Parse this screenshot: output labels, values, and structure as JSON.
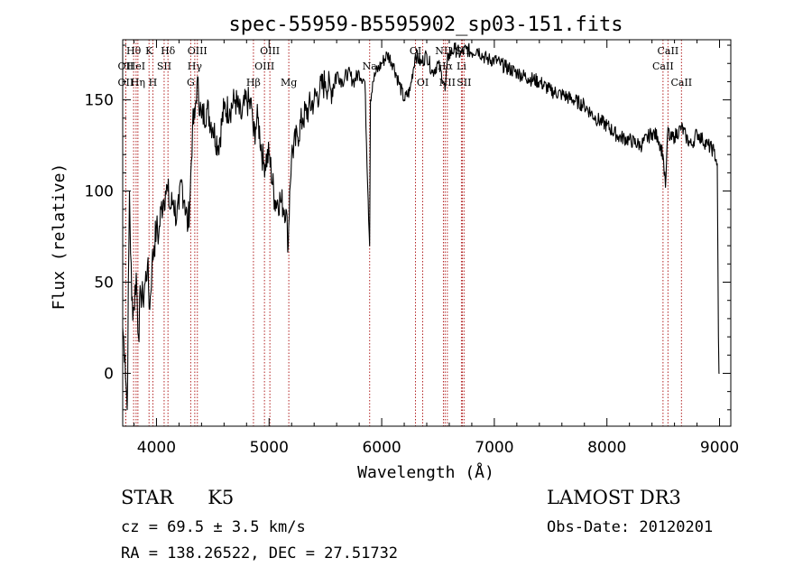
{
  "chart_data": {
    "type": "line",
    "title": "spec-55959-B5595902_sp03-151.fits",
    "xlabel": "Wavelength (Å)",
    "ylabel": "Flux (relative)",
    "xlim": [
      3700,
      9100
    ],
    "ylim": [
      -29,
      183
    ],
    "xticks": [
      4000,
      5000,
      6000,
      7000,
      8000,
      9000
    ],
    "yticks": [
      0,
      50,
      100,
      150
    ],
    "grid": false,
    "series": [
      {
        "name": "spectrum",
        "x": [
          3700,
          3720,
          3740,
          3760,
          3780,
          3800,
          3820,
          3840,
          3860,
          3880,
          3900,
          3920,
          3940,
          3960,
          3980,
          4000,
          4020,
          4040,
          4060,
          4080,
          4100,
          4120,
          4150,
          4180,
          4200,
          4220,
          4250,
          4280,
          4300,
          4320,
          4340,
          4360,
          4400,
          4450,
          4500,
          4550,
          4600,
          4650,
          4700,
          4750,
          4800,
          4850,
          4862,
          4880,
          4900,
          4950,
          5000,
          5050,
          5100,
          5150,
          5170,
          5183,
          5200,
          5250,
          5300,
          5350,
          5400,
          5450,
          5500,
          5550,
          5600,
          5650,
          5700,
          5750,
          5800,
          5850,
          5880,
          5893,
          5900,
          5920,
          5950,
          6000,
          6050,
          6100,
          6150,
          6200,
          6250,
          6300,
          6350,
          6400,
          6450,
          6500,
          6550,
          6563,
          6580,
          6600,
          6650,
          6700,
          6750,
          6800,
          6850,
          6900,
          6950,
          7000,
          7050,
          7100,
          7200,
          7300,
          7400,
          7500,
          7600,
          7700,
          7800,
          7900,
          8000,
          8100,
          8200,
          8300,
          8400,
          8450,
          8498,
          8520,
          8542,
          8560,
          8600,
          8662,
          8700,
          8750,
          8800,
          8850,
          8900,
          8950,
          8980,
          8990,
          8995,
          9000
        ],
        "values": [
          25,
          10,
          -20,
          100,
          40,
          35,
          55,
          20,
          45,
          40,
          50,
          60,
          35,
          60,
          70,
          80,
          75,
          90,
          95,
          100,
          100,
          90,
          95,
          85,
          90,
          105,
          95,
          80,
          100,
          135,
          140,
          160,
          140,
          145,
          135,
          125,
          145,
          145,
          150,
          140,
          150,
          145,
          130,
          135,
          140,
          115,
          120,
          95,
          95,
          90,
          70,
          100,
          120,
          130,
          140,
          145,
          150,
          155,
          160,
          155,
          165,
          160,
          165,
          160,
          165,
          160,
          95,
          70,
          150,
          160,
          165,
          170,
          175,
          170,
          160,
          150,
          155,
          175,
          170,
          175,
          165,
          170,
          160,
          155,
          170,
          175,
          178,
          175,
          178,
          176,
          178,
          174,
          172,
          172,
          170,
          168,
          165,
          162,
          160,
          155,
          153,
          150,
          147,
          140,
          136,
          130,
          128,
          125,
          132,
          130,
          120,
          102,
          135,
          128,
          130,
          135,
          130,
          125,
          132,
          128,
          125,
          122,
          115,
          20,
          0,
          0
        ]
      }
    ],
    "spectral_lines": [
      {
        "label": "Hθ",
        "x": 3797,
        "row": 1
      },
      {
        "label": "OII",
        "x": 3727,
        "row": 2
      },
      {
        "label": "OII",
        "x": 3727,
        "row": 3
      },
      {
        "label": "HeI",
        "x": 3819,
        "row": 2
      },
      {
        "label": "Hη",
        "x": 3835,
        "row": 3
      },
      {
        "label": "K",
        "x": 3934,
        "row": 1
      },
      {
        "label": "H",
        "x": 3968,
        "row": 3
      },
      {
        "label": "SII",
        "x": 4068,
        "row": 2
      },
      {
        "label": "Hδ",
        "x": 4102,
        "row": 1
      },
      {
        "label": "Hγ",
        "x": 4340,
        "row": 2
      },
      {
        "label": "G",
        "x": 4304,
        "row": 3
      },
      {
        "label": "OIII",
        "x": 4363,
        "row": 1
      },
      {
        "label": "Hβ",
        "x": 4861,
        "row": 3
      },
      {
        "label": "OIII",
        "x": 4959,
        "row": 2
      },
      {
        "label": "OIII",
        "x": 5007,
        "row": 1
      },
      {
        "label": "Mg",
        "x": 5175,
        "row": 3
      },
      {
        "label": "Na",
        "x": 5893,
        "row": 2
      },
      {
        "label": "OI",
        "x": 6300,
        "row": 1
      },
      {
        "label": "OI",
        "x": 6364,
        "row": 3
      },
      {
        "label": "NII",
        "x": 6548,
        "row": 1
      },
      {
        "label": "Hα",
        "x": 6563,
        "row": 2
      },
      {
        "label": "NII",
        "x": 6583,
        "row": 3
      },
      {
        "label": "SII",
        "x": 6716,
        "row": 1
      },
      {
        "label": "Li",
        "x": 6708,
        "row": 2
      },
      {
        "label": "SII",
        "x": 6731,
        "row": 3
      },
      {
        "label": "CaII",
        "x": 8542,
        "row": 1
      },
      {
        "label": "CaII",
        "x": 8498,
        "row": 2
      },
      {
        "label": "CaII",
        "x": 8662,
        "row": 3
      }
    ],
    "colors": {
      "spectrum": "#000000",
      "line_markers": "#b22222"
    }
  },
  "info": {
    "class": "STAR",
    "subclass": "K5",
    "survey": "LAMOST DR3",
    "cz": "cz = 69.5 ± 3.5 km/s",
    "obs_date": "Obs-Date: 20120201",
    "coords": "RA = 138.26522, DEC =  27.51732"
  }
}
